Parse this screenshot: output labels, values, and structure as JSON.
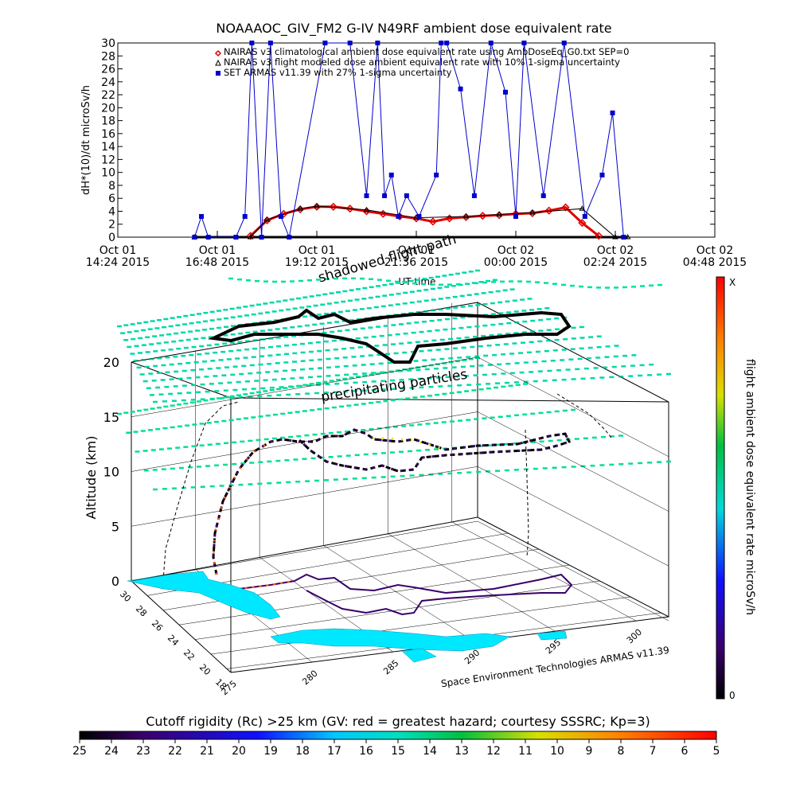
{
  "chart_data": [
    {
      "type": "line",
      "title": "NOAAAOC_GIV_FM2 G-IV    N49RF  ambient dose equivalent rate",
      "xlabel": "UT time",
      "ylabel": "dH*(10)/dt microSv/h",
      "ylim": [
        0,
        30
      ],
      "yticks": [
        0,
        2,
        4,
        6,
        8,
        10,
        12,
        14,
        16,
        18,
        20,
        22,
        24,
        26,
        28,
        30
      ],
      "xlim": [
        "2015-10-01T14:24",
        "2015-10-02T04:48"
      ],
      "xticks": [
        {
          "line1": "Oct 01",
          "line2": "14:24 2015"
        },
        {
          "line1": "Oct 01",
          "line2": "16:48 2015"
        },
        {
          "line1": "Oct 01",
          "line2": "19:12 2015"
        },
        {
          "line1": "Oct 01",
          "line2": "21:36 2015"
        },
        {
          "line1": "Oct 02",
          "line2": "00:00 2015"
        },
        {
          "line1": "Oct 02",
          "line2": "02:24 2015"
        },
        {
          "line1": "Oct 02",
          "line2": "04:48 2015"
        }
      ],
      "legend_position": "top",
      "legend": [
        {
          "label": "NAIRAS v3 climatological ambient dose equivalent rate using AmbDoseEq_G0.txt SEP=0",
          "marker": "diamond",
          "color": "#e00000"
        },
        {
          "label": "NAIRAS v3 flight modeled dose ambient equivalent rate with 10% 1-sigma uncertainty",
          "marker": "triangle",
          "color": "#000000"
        },
        {
          "label": "SET ARMAS v11.39 with 27% 1-sigma uncertainty",
          "marker": "square",
          "color": "#0000cc"
        }
      ],
      "series": [
        {
          "marker": "diamond",
          "color": "#e00000",
          "x": [
            "2015-10-01T17:36",
            "2015-10-01T18:00",
            "2015-10-01T18:24",
            "2015-10-01T18:48",
            "2015-10-01T19:12",
            "2015-10-01T19:36",
            "2015-10-01T20:00",
            "2015-10-01T20:24",
            "2015-10-01T20:48",
            "2015-10-01T21:12",
            "2015-10-01T21:36",
            "2015-10-01T22:00",
            "2015-10-01T22:24",
            "2015-10-01T22:48",
            "2015-10-01T23:12",
            "2015-10-01T23:36",
            "2015-10-02T00:00",
            "2015-10-02T00:24",
            "2015-10-02T00:48",
            "2015-10-02T01:12",
            "2015-10-02T01:36",
            "2015-10-02T02:00"
          ],
          "y": [
            0.2,
            2.6,
            3.6,
            4.3,
            4.7,
            4.7,
            4.4,
            4.0,
            3.6,
            3.2,
            2.9,
            2.4,
            2.9,
            3.1,
            3.3,
            3.4,
            3.6,
            3.7,
            4.1,
            4.6,
            2.2,
            0.2
          ]
        },
        {
          "marker": "triangle",
          "color": "#000000",
          "x": [
            "2015-10-01T16:15",
            "2015-10-01T17:36",
            "2015-10-01T18:00",
            "2015-10-01T18:48",
            "2015-10-01T19:12",
            "2015-10-01T20:24",
            "2015-10-01T21:36",
            "2015-10-01T22:48",
            "2015-10-01T23:36",
            "2015-10-02T00:24",
            "2015-10-02T01:36",
            "2015-10-02T02:24",
            "2015-10-02T02:42"
          ],
          "y": [
            0,
            0,
            2.7,
            4.4,
            4.8,
            4.2,
            3.0,
            3.2,
            3.5,
            3.8,
            4.4,
            0,
            0
          ]
        },
        {
          "marker": "square",
          "color": "#0000cc",
          "x": [
            "2015-10-01T16:15",
            "2015-10-01T16:25",
            "2015-10-01T16:35",
            "2015-10-01T17:15",
            "2015-10-01T17:28",
            "2015-10-01T17:38",
            "2015-10-01T17:52",
            "2015-10-01T18:05",
            "2015-10-01T18:20",
            "2015-10-01T18:32",
            "2015-10-01T19:24",
            "2015-10-01T20:00",
            "2015-10-01T20:24",
            "2015-10-01T20:40",
            "2015-10-01T20:50",
            "2015-10-01T21:00",
            "2015-10-01T21:10",
            "2015-10-01T21:22",
            "2015-10-01T21:40",
            "2015-10-01T22:05",
            "2015-10-01T22:12",
            "2015-10-01T22:20",
            "2015-10-01T22:40",
            "2015-10-01T23:00",
            "2015-10-01T23:24",
            "2015-10-01T23:45",
            "2015-10-02T00:00",
            "2015-10-02T00:12",
            "2015-10-02T00:40",
            "2015-10-02T01:10",
            "2015-10-02T01:40",
            "2015-10-02T02:05",
            "2015-10-02T02:20",
            "2015-10-02T02:36"
          ],
          "y": [
            0,
            3.2,
            0,
            0,
            3.2,
            30,
            0,
            30,
            3.2,
            0,
            30,
            30,
            6.4,
            30,
            6.4,
            9.6,
            3.2,
            6.4,
            3.2,
            9.6,
            30,
            30,
            22.9,
            6.4,
            30,
            22.4,
            3.2,
            30,
            6.4,
            30,
            3.2,
            9.6,
            19.2,
            0
          ]
        }
      ]
    },
    {
      "type": "scatter",
      "title": "Space Environment Technologies ARMAS v11.39",
      "zlabel": "Altitude (km)",
      "zlim": [
        0,
        20
      ],
      "zticks": [
        0,
        5,
        10,
        15,
        20
      ],
      "xlabel": "",
      "xticks": [
        275,
        280,
        285,
        290,
        295,
        300
      ],
      "ylabel": "",
      "yticks": [
        18,
        20,
        22,
        24,
        26,
        28,
        30
      ],
      "annotations": [
        "shadowed flight path",
        "precipitating particles"
      ],
      "colorbar_label": "flight ambient dose equivalent rate microSv/h",
      "colorbar_ticks": [
        "X",
        "0"
      ],
      "track": {
        "lon": [
          278.2,
          279.0,
          280.5,
          282.5,
          284.5,
          286.5,
          288.0,
          289.5,
          291.0,
          292.5,
          294.5,
          296.5,
          297.8,
          298.5
        ],
        "lat": [
          27.5,
          27.9,
          28.6,
          29.2,
          29.0,
          28.2,
          26.5,
          25.2,
          25.6,
          26.8,
          27.6,
          28.6,
          29.4,
          29.8
        ],
        "alt_km": [
          0,
          4.5,
          12.0,
          13.2,
          13.0,
          12.8,
          13.0,
          13.1,
          13.3,
          13.5,
          13.6,
          13.7,
          13.7,
          13.6
        ]
      }
    },
    {
      "type": "heatmap",
      "title": "Cutoff rigidity (Rc) >25 km (GV: red = greatest hazard; courtesy SSSRC; Kp=3)",
      "colorbar_ticks": [
        "25",
        "24",
        "23",
        "22",
        "21",
        "20",
        "19",
        "18",
        "17",
        "16",
        "15",
        "14",
        "13",
        "12",
        "11",
        "10",
        "9",
        "8",
        "7",
        "6",
        "5"
      ]
    }
  ]
}
